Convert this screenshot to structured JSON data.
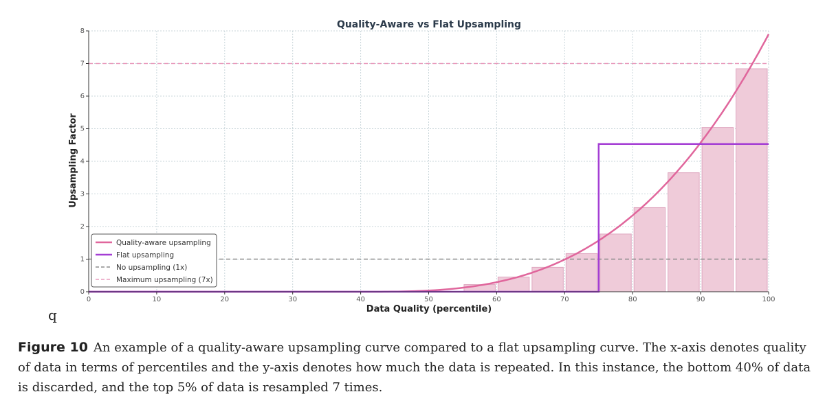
{
  "chart_data": {
    "type": "line",
    "title": "Quality-Aware vs Flat Upsampling",
    "xlabel": "Data Quality (percentile)",
    "ylabel": "Upsampling Factor",
    "xlim": [
      0,
      100
    ],
    "ylim": [
      0,
      8
    ],
    "xticks": [
      "0",
      "10",
      "20",
      "30",
      "40",
      "50",
      "60",
      "70",
      "80",
      "90",
      "100"
    ],
    "yticks": [
      "0",
      "1",
      "2",
      "3",
      "4",
      "5",
      "6",
      "7",
      "8"
    ],
    "grid": true,
    "legend_position": "lower-left",
    "bars": {
      "width": 5,
      "x": [
        57.5,
        62.5,
        67.5,
        72.5,
        77.5,
        82.5,
        87.5,
        92.5,
        97.5
      ],
      "values": [
        0.22,
        0.45,
        0.75,
        1.17,
        1.77,
        2.58,
        3.65,
        5.04,
        6.84
      ]
    },
    "series": [
      {
        "name": "Quality-aware upsampling",
        "style": "solid",
        "color": "#e0669c",
        "x": [
          40,
          45,
          50,
          55,
          60,
          65,
          70,
          75,
          80,
          85,
          90,
          95,
          100
        ],
        "y": [
          0,
          0.02,
          0.07,
          0.16,
          0.31,
          0.56,
          0.94,
          1.48,
          2.24,
          3.27,
          4.63,
          6.37,
          7.9
        ]
      },
      {
        "name": "Flat upsampling",
        "style": "solid",
        "color": "#a43ed4",
        "x": [
          0,
          75,
          75,
          100
        ],
        "y": [
          0,
          0,
          4.53,
          4.53
        ]
      },
      {
        "name": "No upsampling (1x)",
        "style": "dashed",
        "color": "#8c8c8c",
        "y_const": 1
      },
      {
        "name": "Maximum upsampling (7x)",
        "style": "dashed",
        "color": "#e99bbd",
        "y_const": 7
      }
    ],
    "colors": {
      "bar_fill": "#efcbd9",
      "bar_stroke": "#dea6bf",
      "grid": "#c9d6da"
    }
  },
  "stray_text": "q",
  "caption": {
    "label": "Figure 10",
    "text": "An example of a quality-aware upsampling curve compared to a flat upsampling curve. The x-axis denotes quality of data in terms of percentiles and the y-axis denotes how much the data is repeated. In this instance, the bottom 40% of data is discarded, and the top 5% of data is resampled 7 times."
  }
}
